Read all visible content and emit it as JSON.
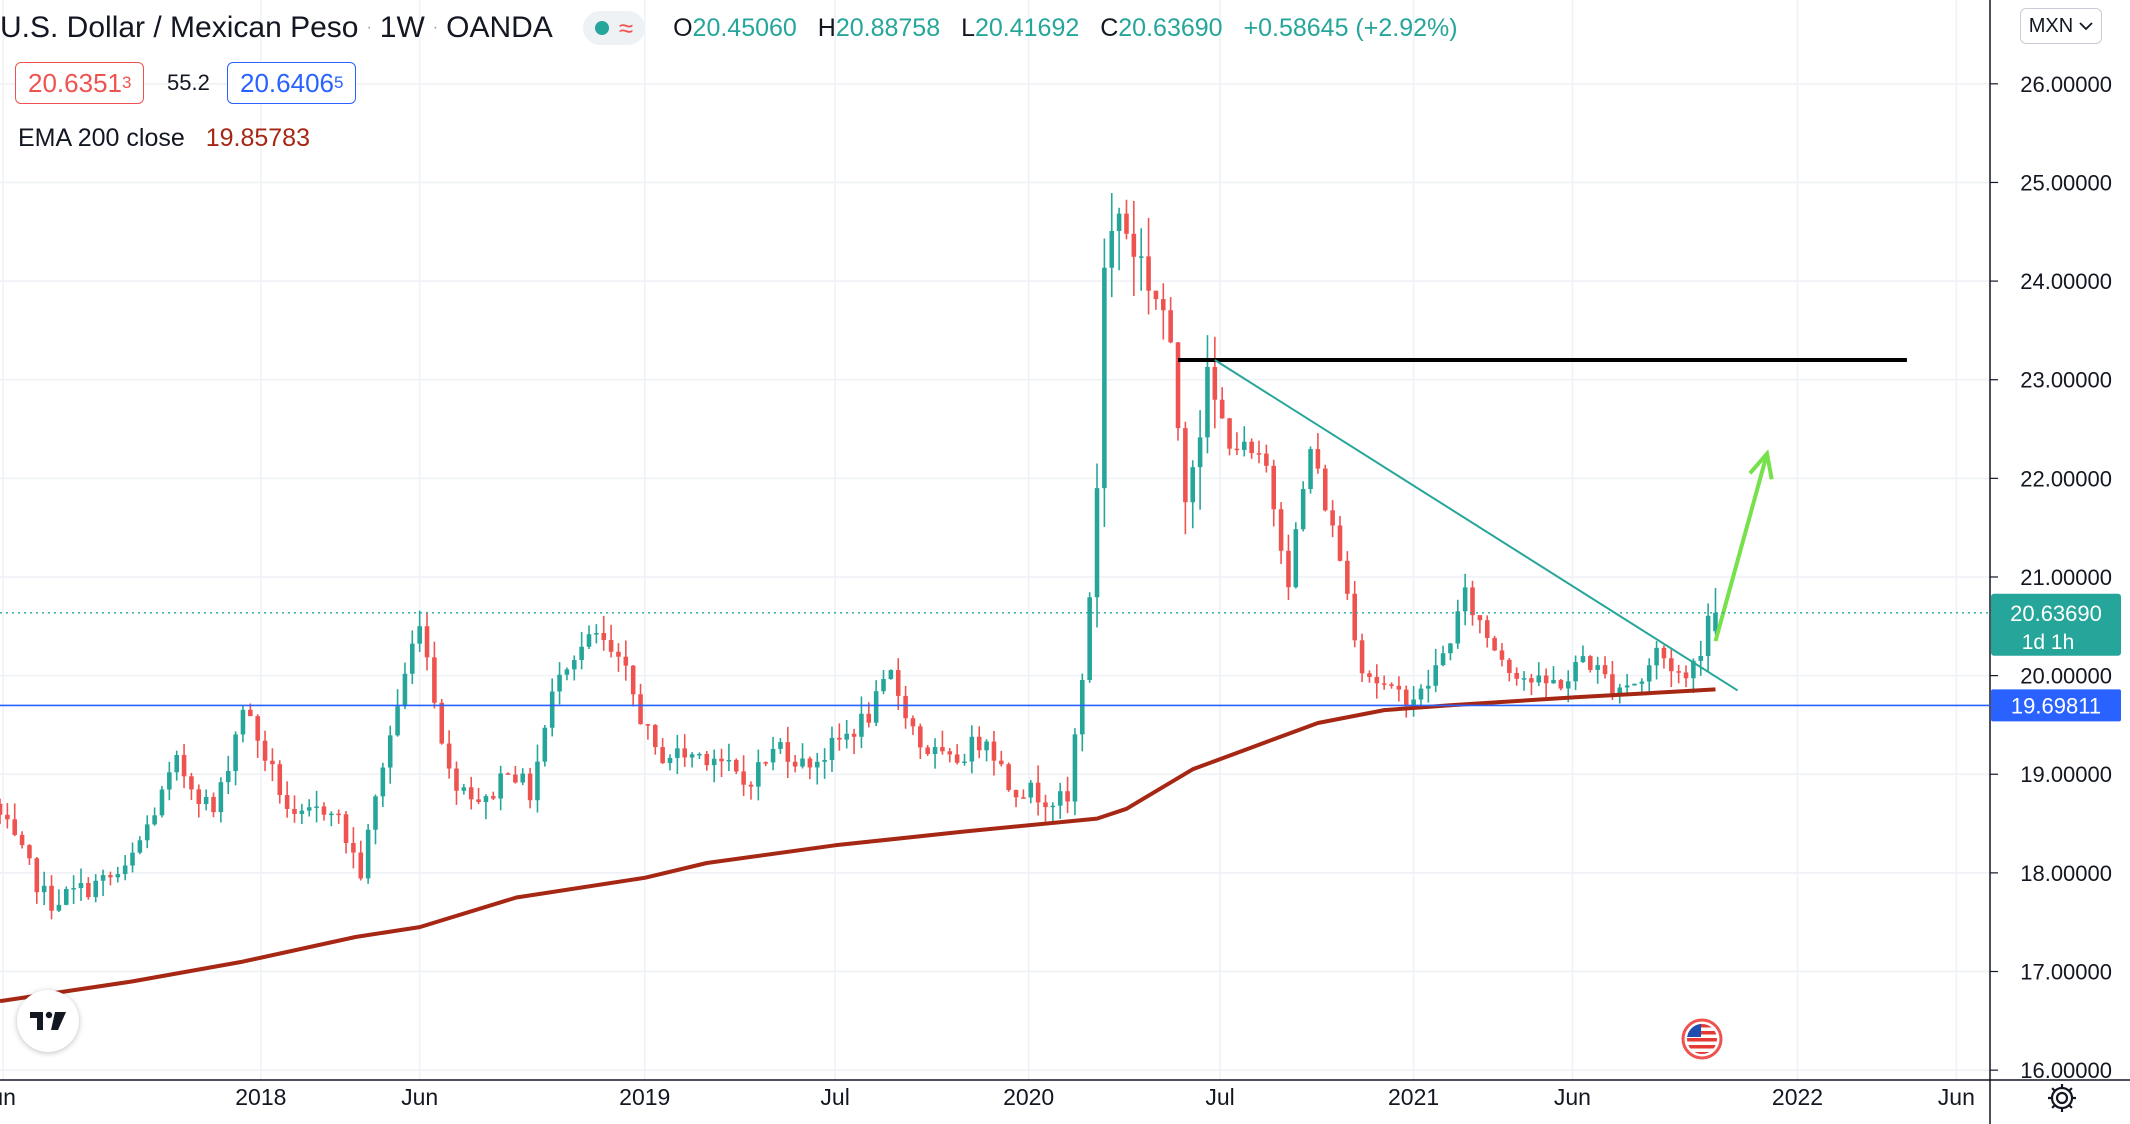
{
  "header": {
    "symbol_title": "U.S. Dollar / Mexican Peso",
    "interval": "1W",
    "exchange": "OANDA",
    "ohlc": {
      "o_label": "O",
      "o": "20.45060",
      "h_label": "H",
      "h": "20.88758",
      "l_label": "L",
      "l": "20.41692",
      "c_label": "C",
      "c": "20.63690",
      "change": "+0.58645 (+2.92%)"
    }
  },
  "quotes": {
    "bid_main": "20.6351",
    "bid_sup": "3",
    "spread": "55.2",
    "ask_main": "20.6406",
    "ask_sup": "5"
  },
  "indicator": {
    "name": "EMA 200 close",
    "value": "19.85783"
  },
  "currency_button": "MXN",
  "colors": {
    "up": "#26a69a",
    "down": "#ef5350",
    "ema": "#a52714",
    "trendline": "#26a69a",
    "horizontal_blue": "#2962ff",
    "resistance": "#000000",
    "arrow": "#76e14a",
    "grid": "#eef1f5"
  },
  "icons": [
    "tradingview-logo-icon",
    "us-flag-icon",
    "gear-icon",
    "chevron-down-icon"
  ],
  "chart_data": {
    "type": "candlestick",
    "y_range": [
      15.9,
      26.85
    ],
    "y_ticks": [
      "26.00000",
      "25.00000",
      "24.00000",
      "23.00000",
      "22.00000",
      "21.00000",
      "20.00000",
      "19.00000",
      "18.00000",
      "17.00000",
      "16.00000"
    ],
    "x_range": [
      "2017-04-28",
      "2022-07-03"
    ],
    "x_ticks": [
      {
        "date": "2017-05-01",
        "label": "un"
      },
      {
        "date": "2018-01-01",
        "label": "2018"
      },
      {
        "date": "2018-06-01",
        "label": "Jun"
      },
      {
        "date": "2019-01-01",
        "label": "2019"
      },
      {
        "date": "2019-07-01",
        "label": "Jul"
      },
      {
        "date": "2020-01-01",
        "label": "2020"
      },
      {
        "date": "2020-07-01",
        "label": "Jul"
      },
      {
        "date": "2021-01-01",
        "label": "2021"
      },
      {
        "date": "2021-06-01",
        "label": "Jun"
      },
      {
        "date": "2022-01-01",
        "label": "2022"
      },
      {
        "date": "2022-06-01",
        "label": "Jun"
      }
    ],
    "price_path": [
      [
        "2017-04-28",
        18.7
      ],
      [
        "2017-06-20",
        17.7
      ],
      [
        "2017-09-01",
        18.0
      ],
      [
        "2017-10-20",
        19.1
      ],
      [
        "2017-11-25",
        18.6
      ],
      [
        "2017-12-22",
        19.7
      ],
      [
        "2018-02-09",
        18.5
      ],
      [
        "2018-03-16",
        18.7
      ],
      [
        "2018-04-13",
        18.0
      ],
      [
        "2018-05-04",
        19.1
      ],
      [
        "2018-06-08",
        20.6
      ],
      [
        "2018-07-06",
        19.0
      ],
      [
        "2018-08-10",
        18.7
      ],
      [
        "2018-08-31",
        19.1
      ],
      [
        "2018-09-21",
        18.8
      ],
      [
        "2018-10-19",
        20.1
      ],
      [
        "2018-11-23",
        20.4
      ],
      [
        "2018-12-21",
        20.0
      ],
      [
        "2019-01-18",
        19.2
      ],
      [
        "2019-02-15",
        19.2
      ],
      [
        "2019-03-15",
        19.2
      ],
      [
        "2019-04-12",
        18.9
      ],
      [
        "2019-05-17",
        19.3
      ],
      [
        "2019-06-07",
        19.1
      ],
      [
        "2019-06-28",
        19.2
      ],
      [
        "2019-08-09",
        19.6
      ],
      [
        "2019-08-30",
        20.0
      ],
      [
        "2019-09-27",
        19.3
      ],
      [
        "2019-10-25",
        19.1
      ],
      [
        "2019-11-29",
        19.4
      ],
      [
        "2019-12-20",
        18.9
      ],
      [
        "2020-02-14",
        18.7
      ],
      [
        "2020-03-06",
        20.7
      ],
      [
        "2020-03-13",
        22.0
      ],
      [
        "2020-03-20",
        24.2
      ],
      [
        "2020-04-03",
        24.7
      ],
      [
        "2020-04-24",
        24.2
      ],
      [
        "2020-05-15",
        23.7
      ],
      [
        "2020-06-05",
        22.0
      ],
      [
        "2020-06-26",
        22.9
      ],
      [
        "2020-07-17",
        22.4
      ],
      [
        "2020-08-21",
        22.1
      ],
      [
        "2020-09-11",
        21.0
      ],
      [
        "2020-10-02",
        22.3
      ],
      [
        "2020-10-30",
        21.2
      ],
      [
        "2020-11-20",
        20.1
      ],
      [
        "2020-12-18",
        19.8
      ],
      [
        "2021-01-15",
        19.8
      ],
      [
        "2021-02-05",
        20.2
      ],
      [
        "2021-02-26",
        20.8
      ],
      [
        "2021-03-19",
        20.4
      ],
      [
        "2021-04-09",
        20.1
      ],
      [
        "2021-05-07",
        19.9
      ],
      [
        "2021-06-04",
        19.95
      ],
      [
        "2021-06-18",
        20.2
      ],
      [
        "2021-07-16",
        19.9
      ],
      [
        "2021-08-13",
        19.95
      ],
      [
        "2021-08-27",
        20.25
      ],
      [
        "2021-09-24",
        19.95
      ],
      [
        "2021-10-08",
        20.3
      ],
      [
        "2021-10-15",
        20.63
      ]
    ],
    "ema200": [
      [
        "2017-04-28",
        16.7
      ],
      [
        "2017-09-01",
        16.9
      ],
      [
        "2017-12-15",
        17.1
      ],
      [
        "2018-04-01",
        17.35
      ],
      [
        "2018-06-01",
        17.45
      ],
      [
        "2018-09-01",
        17.75
      ],
      [
        "2019-01-01",
        17.95
      ],
      [
        "2019-03-01",
        18.1
      ],
      [
        "2019-07-01",
        18.28
      ],
      [
        "2019-11-01",
        18.42
      ],
      [
        "2020-03-06",
        18.55
      ],
      [
        "2020-04-03",
        18.65
      ],
      [
        "2020-06-05",
        19.05
      ],
      [
        "2020-08-07",
        19.3
      ],
      [
        "2020-10-02",
        19.52
      ],
      [
        "2020-12-04",
        19.65
      ],
      [
        "2021-02-05",
        19.7
      ],
      [
        "2021-06-04",
        19.78
      ],
      [
        "2021-10-15",
        19.86
      ]
    ],
    "last_candle": {
      "date": "2021-10-15",
      "open": 20.4506,
      "high": 20.88758,
      "low": 20.41692,
      "close": 20.6369
    },
    "last_price": "20.63690",
    "last_price_countdown": "1d 1h",
    "horizontal_line_price": 19.69811,
    "horizontal_line_label": "19.69811",
    "resistance_line": {
      "from": "2020-05-22",
      "to": "2022-04-15",
      "price": 23.2
    },
    "trendline": {
      "from": [
        "2020-06-26",
        23.2
      ],
      "to": [
        "2021-11-05",
        19.85
      ]
    },
    "arrow": {
      "from": [
        "2021-10-15",
        20.35
      ],
      "to": [
        "2021-12-03",
        22.25
      ]
    }
  }
}
